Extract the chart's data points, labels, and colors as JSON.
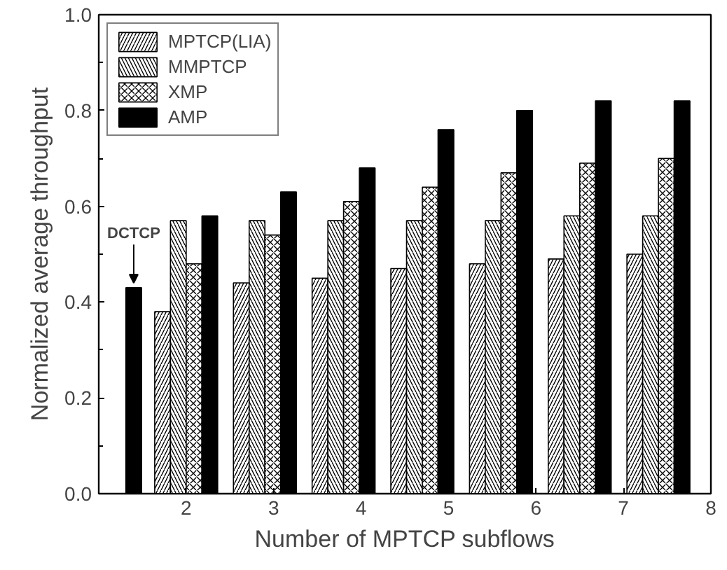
{
  "chart_data": {
    "type": "bar",
    "xlabel": "Number of MPTCP subflows",
    "ylabel": "Normalized average throughput",
    "x": [
      2.0,
      2.9,
      3.8,
      4.7,
      5.6,
      6.5,
      7.4
    ],
    "series": [
      {
        "name": "MPTCP(LIA)",
        "color": "#ffffff",
        "values": [
          0.38,
          0.44,
          0.45,
          0.47,
          0.48,
          0.49,
          0.5
        ]
      },
      {
        "name": "MMPTCP",
        "color": "#ffffff",
        "values": [
          0.57,
          0.57,
          0.57,
          0.57,
          0.57,
          0.58,
          0.58
        ]
      },
      {
        "name": "XMP",
        "color": "#ffffff",
        "values": [
          0.48,
          0.54,
          0.61,
          0.64,
          0.67,
          0.69,
          0.7
        ]
      },
      {
        "name": "AMP",
        "color": "#000000",
        "values": [
          0.58,
          0.63,
          0.68,
          0.76,
          0.8,
          0.82,
          0.82
        ]
      },
      {
        "color": "#000000",
        "x": [
          1.4
        ],
        "values": [
          0.43
        ]
      }
    ],
    "annotations": [
      {
        "text": "DCTCP",
        "x": 1.4,
        "y": 0.43
      }
    ],
    "xlim": [
      1,
      8
    ],
    "xticks": [
      2,
      3,
      4,
      5,
      6,
      7,
      8
    ],
    "ylim": [
      0,
      1
    ],
    "yticks": [
      {
        "value": 0,
        "label": "0.0"
      },
      {
        "value": 0.2,
        "label": "0.2"
      },
      {
        "value": 0.4,
        "label": "0.4"
      },
      {
        "value": 0.6,
        "label": "0.6"
      },
      {
        "value": 0.8,
        "label": "0.8"
      },
      {
        "value": 1,
        "label": "1.0"
      }
    ],
    "grid": false,
    "legend": "top left"
  }
}
